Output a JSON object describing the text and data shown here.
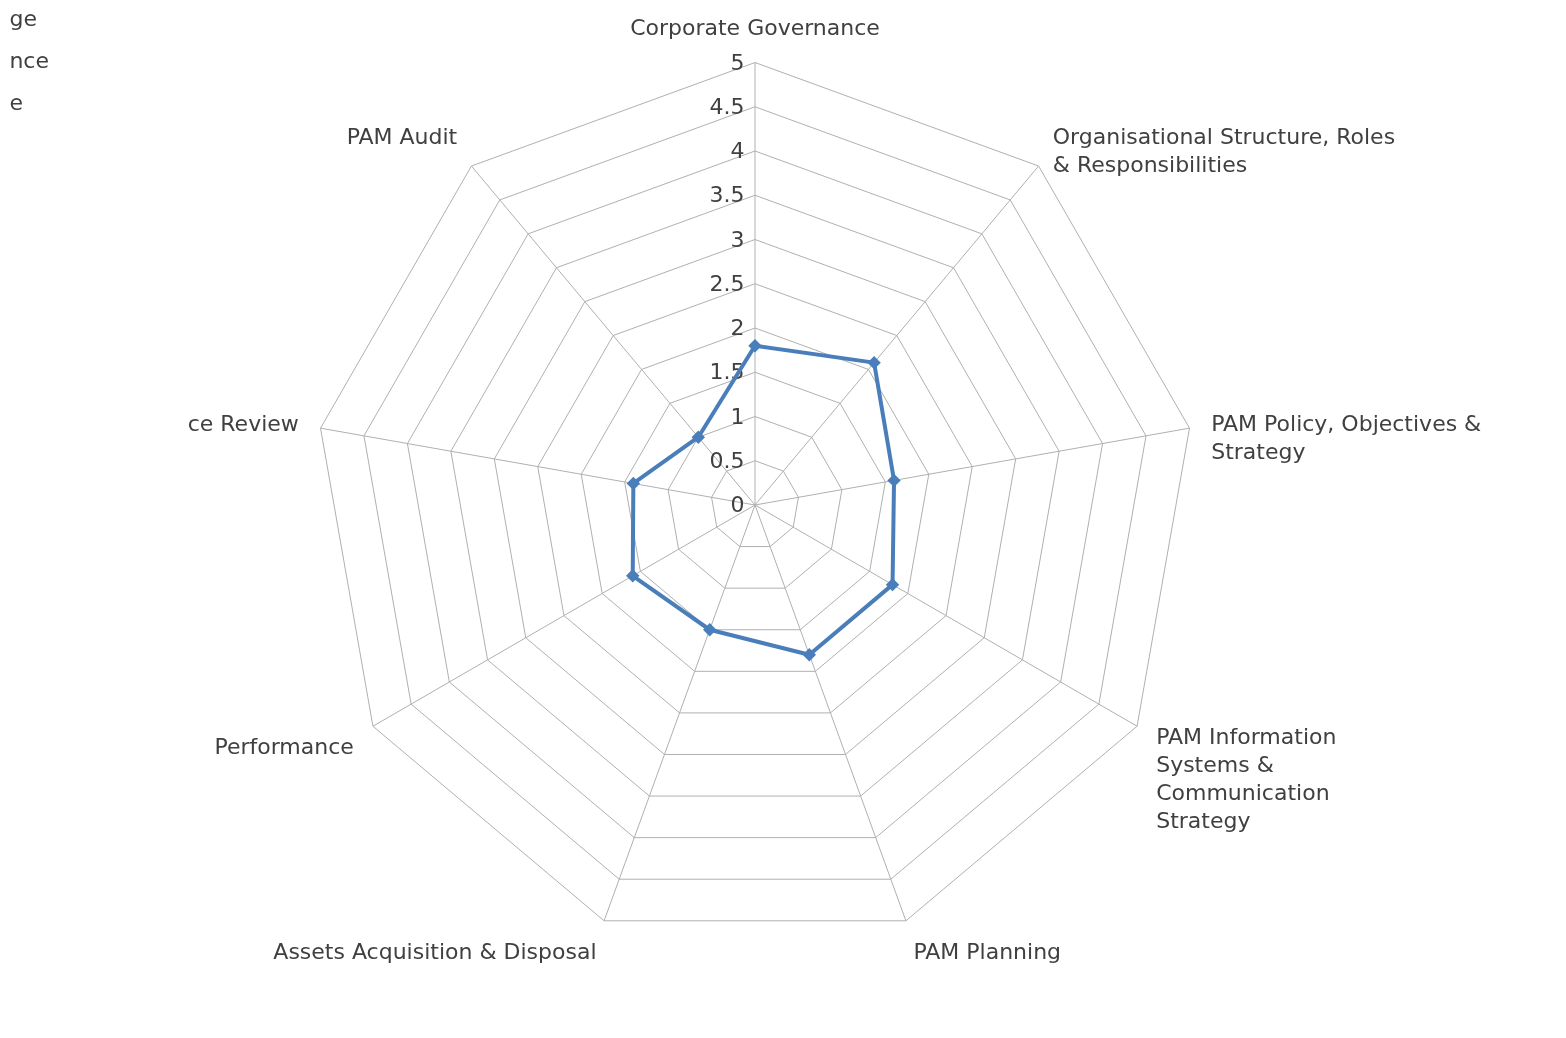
{
  "chart_data": {
    "type": "radar",
    "categories": [
      "Corporate Governance",
      "Organisational Structure, Roles\n& Responsibilities",
      "PAM Policy, Objectives &\nStrategy",
      "PAM Information\nSystems &\nCommunication\nStrategy",
      "PAM Planning",
      "Assets Acquisition & Disposal",
      "Performance",
      "ce Review",
      "PAM Audit"
    ],
    "series": [
      {
        "color": "#4a7ebb",
        "values": [
          1.8,
          2.1,
          1.6,
          1.8,
          1.8,
          1.5,
          1.6,
          1.4,
          1.0
        ]
      }
    ],
    "ylim": [
      0,
      5
    ],
    "yticks": [
      0,
      0.5,
      1,
      1.5,
      2,
      2.5,
      3,
      3.5,
      4,
      4.5,
      5
    ],
    "marker": "diamond",
    "grid": true,
    "annotations": [
      "ge\nnce\ne"
    ]
  }
}
